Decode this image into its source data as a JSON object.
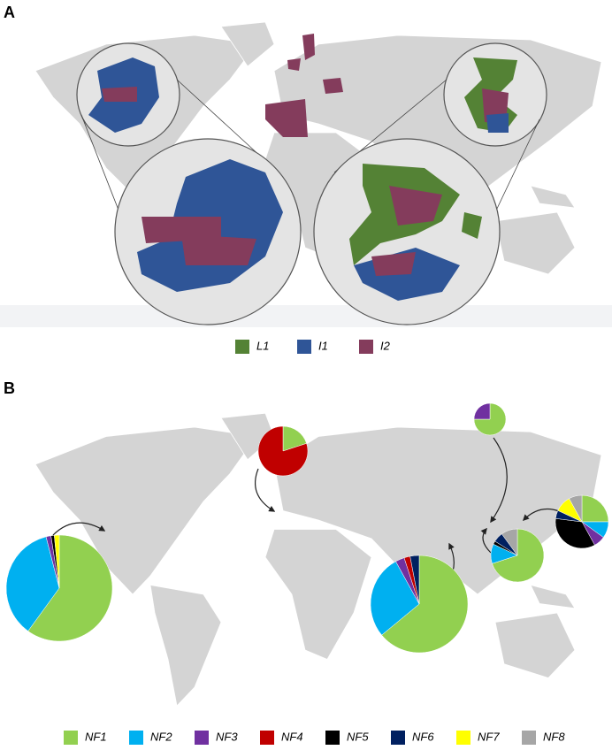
{
  "panel_a": {
    "label": "A",
    "legend": [
      {
        "name": "L1",
        "color": "#548235"
      },
      {
        "name": "I1",
        "color": "#2f5597"
      },
      {
        "name": "I2",
        "color": "#843c5c"
      }
    ]
  },
  "panel_b": {
    "label": "B",
    "legend": [
      {
        "name": "NF1",
        "color": "#92d050"
      },
      {
        "name": "NF2",
        "color": "#00b0f0"
      },
      {
        "name": "NF3",
        "color": "#7030a0"
      },
      {
        "name": "NF4",
        "color": "#c00000"
      },
      {
        "name": "NF5",
        "color": "#000000"
      },
      {
        "name": "NF6",
        "color": "#002060"
      },
      {
        "name": "NF7",
        "color": "#ffff00"
      },
      {
        "name": "NF8",
        "color": "#a6a6a6"
      }
    ]
  },
  "chart_data": [
    {
      "type": "pie",
      "values": [
        60,
        36,
        1.5,
        0,
        1,
        0,
        1.5,
        0
      ]
    },
    {
      "type": "pie",
      "values": [
        20,
        0,
        0,
        80,
        0,
        0,
        0,
        0
      ]
    },
    {
      "type": "pie",
      "values": [
        75,
        0,
        25,
        0,
        0,
        0,
        0,
        0
      ]
    },
    {
      "type": "pie",
      "values": [
        25,
        10,
        7,
        0,
        35,
        5,
        10,
        8
      ]
    },
    {
      "type": "pie",
      "values": [
        70,
        12,
        0,
        0,
        2,
        6,
        0,
        10
      ]
    },
    {
      "type": "pie",
      "values": [
        64,
        28,
        3,
        2,
        0,
        3,
        0,
        0
      ]
    }
  ]
}
